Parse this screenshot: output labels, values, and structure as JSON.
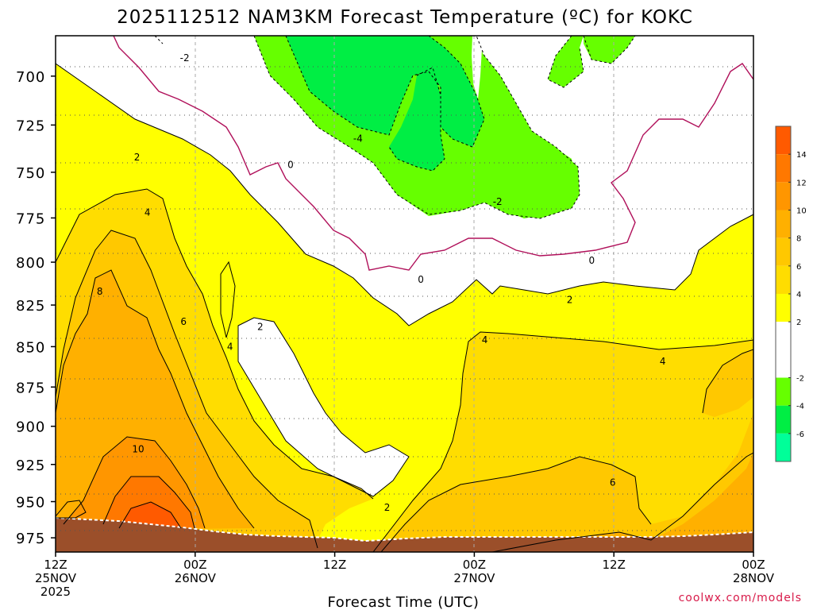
{
  "chart_data": {
    "type": "contour",
    "title": "2025112512 NAM3KM Forecast Temperature (ºC) for KOKC",
    "xlabel": "Forecast Time (UTC)",
    "ylabel": "",
    "credit": "coolwx.com/models",
    "x_ticks": [
      {
        "hours": 0,
        "line1": "12Z",
        "line2": "25NOV",
        "line3": "2025"
      },
      {
        "hours": 12,
        "line1": "00Z",
        "line2": "26NOV",
        "line3": ""
      },
      {
        "hours": 24,
        "line1": "12Z",
        "line2": "",
        "line3": ""
      },
      {
        "hours": 36,
        "line1": "00Z",
        "line2": "27NOV",
        "line3": ""
      },
      {
        "hours": 48,
        "line1": "12Z",
        "line2": "",
        "line3": ""
      },
      {
        "hours": 60,
        "line1": "00Z",
        "line2": "28NOV",
        "line3": ""
      }
    ],
    "xlim_hours": [
      0,
      60
    ],
    "y_ticks_hPa": [
      700,
      725,
      750,
      775,
      800,
      825,
      850,
      875,
      900,
      925,
      950,
      975
    ],
    "ylim_hPa": [
      680,
      985
    ],
    "surface_pressure_hPa": [
      [
        0,
        972
      ],
      [
        3,
        973
      ],
      [
        6,
        974
      ],
      [
        9,
        976
      ],
      [
        12,
        978
      ],
      [
        15,
        980
      ],
      [
        21,
        980
      ],
      [
        24,
        980
      ],
      [
        27,
        981
      ],
      [
        30,
        980
      ],
      [
        36,
        979
      ],
      [
        42,
        979
      ],
      [
        48,
        979
      ],
      [
        54,
        979
      ],
      [
        57,
        978
      ],
      [
        60,
        976
      ]
    ],
    "colorbar": {
      "ticks": [
        "14",
        "12",
        "10",
        "8",
        "6",
        "4",
        "2",
        "-2",
        "-4",
        "-6"
      ],
      "bins": [
        {
          "range": [
            14,
            16
          ],
          "color": "#ff5a00"
        },
        {
          "range": [
            12,
            14
          ],
          "color": "#ff7800"
        },
        {
          "range": [
            10,
            12
          ],
          "color": "#ff9600"
        },
        {
          "range": [
            8,
            10
          ],
          "color": "#ffb000"
        },
        {
          "range": [
            6,
            8
          ],
          "color": "#ffc800"
        },
        {
          "range": [
            4,
            6
          ],
          "color": "#ffdd00"
        },
        {
          "range": [
            2,
            4
          ],
          "color": "#ffff00"
        },
        {
          "range": [
            -2,
            2
          ],
          "color": "#ffffff"
        },
        {
          "range": [
            -4,
            -2
          ],
          "color": "#66ff00"
        },
        {
          "range": [
            -6,
            -4
          ],
          "color": "#00ee44"
        },
        {
          "range": [
            -8,
            -6
          ],
          "color": "#00ff99"
        }
      ]
    },
    "contour_labels": [
      {
        "text": "-2",
        "hours": 11.1,
        "hPa": 691
      },
      {
        "text": "-4",
        "hours": 26.0,
        "hPa": 732
      },
      {
        "text": "-2",
        "hours": 38.0,
        "hPa": 766
      },
      {
        "text": "0",
        "hours": 20.2,
        "hPa": 746
      },
      {
        "text": "0",
        "hours": 31.4,
        "hPa": 810
      },
      {
        "text": "0",
        "hours": 46.1,
        "hPa": 799
      },
      {
        "text": "2",
        "hours": 7.0,
        "hPa": 742
      },
      {
        "text": "2",
        "hours": 17.6,
        "hPa": 838
      },
      {
        "text": "2",
        "hours": 44.2,
        "hPa": 822
      },
      {
        "text": "2",
        "hours": 28.5,
        "hPa": 954
      },
      {
        "text": "4",
        "hours": 7.9,
        "hPa": 772
      },
      {
        "text": "4",
        "hours": 15.0,
        "hPa": 850
      },
      {
        "text": "4",
        "hours": 36.9,
        "hPa": 846
      },
      {
        "text": "4",
        "hours": 52.2,
        "hPa": 859
      },
      {
        "text": "6",
        "hours": 11.0,
        "hPa": 835
      },
      {
        "text": "6",
        "hours": 47.9,
        "hPa": 937
      },
      {
        "text": "8",
        "hours": 3.8,
        "hPa": 817
      },
      {
        "text": "10",
        "hours": 7.1,
        "hPa": 915
      }
    ]
  }
}
